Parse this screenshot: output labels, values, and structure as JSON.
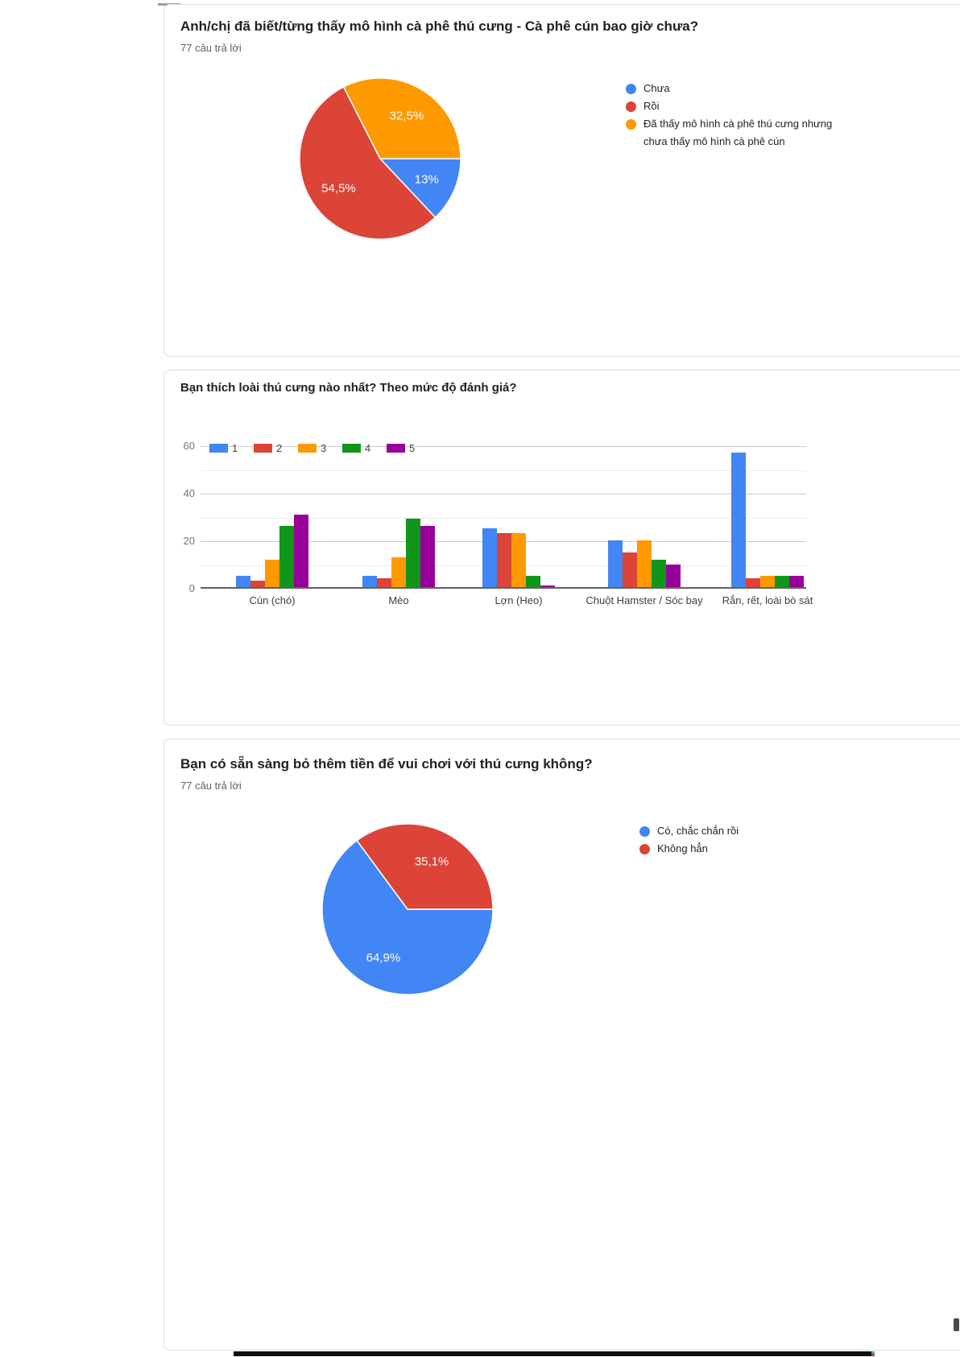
{
  "palette": {
    "blue": "#4285f4",
    "red": "#db4437",
    "orange": "#ff9900",
    "green": "#109618",
    "purple": "#990099"
  },
  "sections": [
    {
      "title": "Anh/chị đã biết/từng thấy mô hình cà phê thú cưng - Cà phê cún bao giờ chưa?",
      "responses": "77 câu trả lời"
    },
    {
      "title": "Bạn thích loài thú cưng nào nhất? Theo mức độ đánh giá?"
    },
    {
      "title": "Bạn có sẵn sàng bỏ thêm tiền để vui chơi với thú cưng không?",
      "responses": "77 câu trả lời"
    }
  ],
  "chart_data": [
    {
      "type": "pie",
      "title": "Anh/chị đã biết/từng thấy mô hình cà phê thú cưng - Cà phê cún bao giờ chưa?",
      "labels": [
        "Chưa",
        "Rồi",
        "Đã thấy mô hình cà phê thú cưng nhưng chưa thấy mô hình cà phê cún"
      ],
      "values": [
        13,
        54.5,
        32.5
      ],
      "slice_labels": [
        "13%",
        "54,5%",
        "32,5%"
      ],
      "colors": [
        "#4285f4",
        "#db4437",
        "#ff9900"
      ],
      "legend_position": "right",
      "start_angle": "east-clockwise"
    },
    {
      "type": "bar",
      "title": "Bạn thích loài thú cưng nào nhất? Theo mức độ đánh giá?",
      "categories": [
        "Cún (chó)",
        "Mèo",
        "Lợn (Heo)",
        "Chuột Hamster / Sóc bay",
        "Rắn, rết, loài bò sát"
      ],
      "series": [
        {
          "name": "1",
          "color": "#4285f4",
          "values": [
            5,
            5,
            25,
            20,
            57
          ]
        },
        {
          "name": "2",
          "color": "#db4437",
          "values": [
            3,
            4,
            23,
            15,
            4
          ]
        },
        {
          "name": "3",
          "color": "#ff9900",
          "values": [
            12,
            13,
            23,
            20,
            5
          ]
        },
        {
          "name": "4",
          "color": "#109618",
          "values": [
            26,
            29,
            5,
            12,
            5
          ]
        },
        {
          "name": "5",
          "color": "#990099",
          "values": [
            31,
            26,
            1,
            10,
            5
          ]
        }
      ],
      "ylim": [
        0,
        60
      ],
      "yticks": [
        0,
        20,
        40,
        60
      ],
      "grid": "on",
      "legend_position": "top"
    },
    {
      "type": "pie",
      "title": "Bạn có sẵn sàng bỏ thêm tiền để vui chơi với thú cưng không?",
      "labels": [
        "Có, chắc chắn rồi",
        "Không hẳn"
      ],
      "values": [
        64.9,
        35.1
      ],
      "slice_labels": [
        "64,9%",
        "35,1%"
      ],
      "colors": [
        "#4285f4",
        "#db4437"
      ],
      "legend_position": "right",
      "start_angle": "east-clockwise"
    }
  ]
}
